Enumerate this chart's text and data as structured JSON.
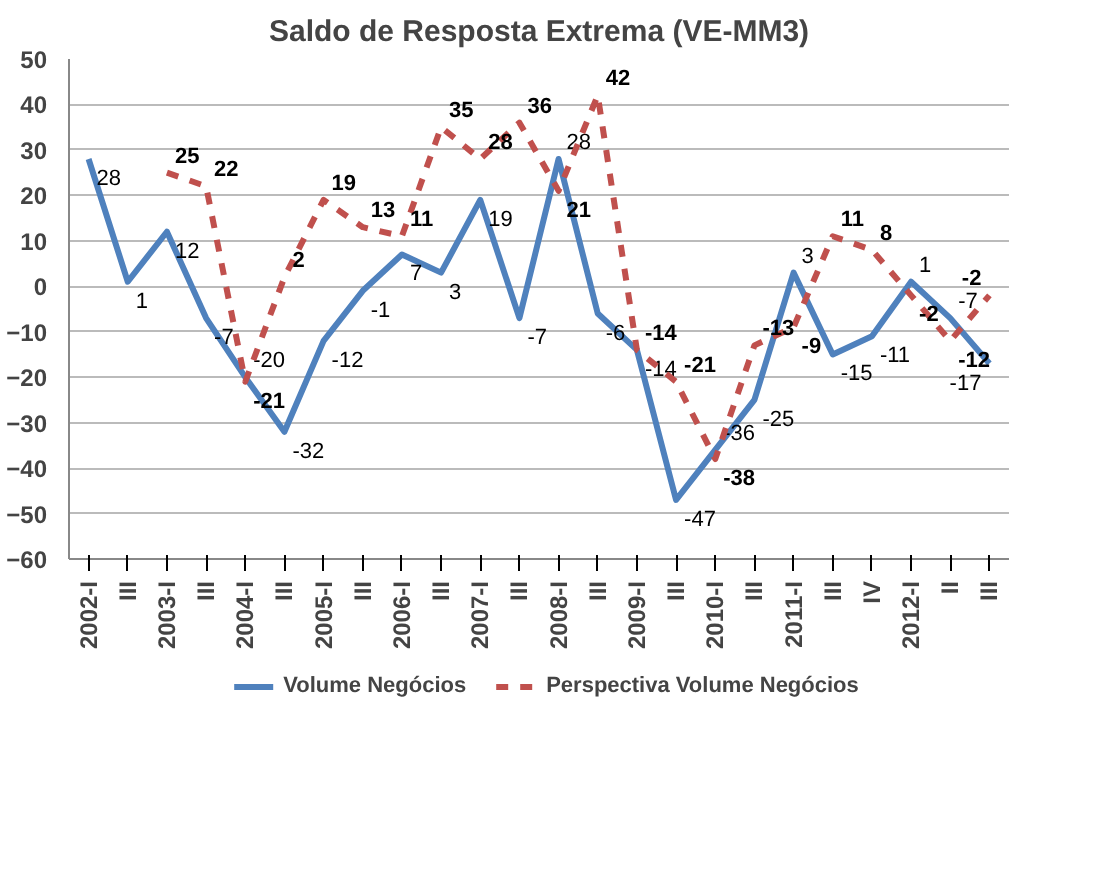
{
  "chart_data": {
    "type": "line",
    "title": "Saldo de Resposta Extrema (VE-MM3)",
    "categories": [
      "2002-I",
      "III",
      "2003-I",
      "III",
      "2004-I",
      "III",
      "2005-I",
      "III",
      "2006-I",
      "III",
      "2007-I",
      "III",
      "2008-I",
      "III",
      "2009-I",
      "III",
      "2010-I",
      "III",
      "2011-I",
      "III",
      "IV",
      "2012-I",
      "II",
      "III"
    ],
    "series": [
      {
        "name": "Volume Negócios",
        "color": "#4f81bd",
        "line_style": "solid",
        "values": [
          28,
          1,
          12,
          -7,
          -20,
          -32,
          -12,
          -1,
          7,
          3,
          19,
          -7,
          28,
          -6,
          -14,
          -47,
          -36,
          -25,
          3,
          -15,
          -11,
          1,
          -7,
          -17
        ]
      },
      {
        "name": "Perspectiva Volume Negócios",
        "color": "#c0504d",
        "line_style": "dashed",
        "values": [
          null,
          null,
          25,
          22,
          -21,
          2,
          19,
          13,
          11,
          35,
          28,
          36,
          21,
          42,
          -14,
          -21,
          -38,
          -13,
          -9,
          11,
          8,
          -2,
          -12,
          -2
        ]
      }
    ],
    "ylim": [
      -60,
      50
    ],
    "yticks": [
      -60,
      -50,
      -40,
      -30,
      -20,
      -10,
      0,
      10,
      20,
      30,
      40,
      50
    ],
    "grid": "y",
    "legend": "bottom",
    "marker": "none",
    "data_labels": true
  }
}
